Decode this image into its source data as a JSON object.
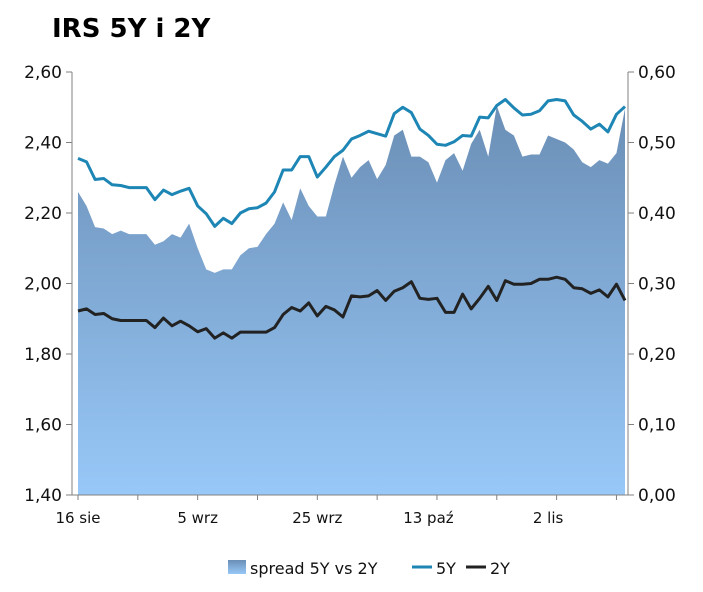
{
  "chart_data": {
    "type": "line",
    "title": "IRS 5Y i 2Y",
    "x_tick_labels": [
      "16 sie",
      "5 wrz",
      "25 wrz",
      "13 paź",
      "2 lis"
    ],
    "x_tick_index": [
      0,
      14,
      28,
      41,
      55
    ],
    "y_left": {
      "min": 1.4,
      "max": 2.6,
      "ticks": [
        1.4,
        1.6,
        1.8,
        2.0,
        2.2,
        2.4,
        2.6
      ],
      "tick_labels": [
        "1,40",
        "1,60",
        "1,80",
        "2,00",
        "2,20",
        "2,40",
        "2,60"
      ]
    },
    "y_right": {
      "min": 0.0,
      "max": 0.6,
      "ticks": [
        0.0,
        0.1,
        0.2,
        0.3,
        0.4,
        0.5,
        0.6
      ],
      "tick_labels": [
        "0,00",
        "0,10",
        "0,20",
        "0,30",
        "0,40",
        "0,50",
        "0,60"
      ]
    },
    "grid": false,
    "legend_position": "bottom",
    "colors": {
      "spread_fill_top": "#6b8fb6",
      "spread_fill_bottom": "#98c8f8",
      "line_5y": "#1d86b5",
      "line_2y": "#222222",
      "axis": "#808080"
    },
    "series": [
      {
        "name": "spread 5Y vs 2Y",
        "axis": "right",
        "kind": "area",
        "values": [
          0.43,
          0.41,
          0.38,
          0.378,
          0.37,
          0.375,
          0.37,
          0.37,
          0.37,
          0.355,
          0.36,
          0.37,
          0.365,
          0.385,
          0.35,
          0.32,
          0.315,
          0.32,
          0.32,
          0.34,
          0.35,
          0.352,
          0.37,
          0.385,
          0.415,
          0.39,
          0.435,
          0.41,
          0.395,
          0.395,
          0.44,
          0.48,
          0.45,
          0.465,
          0.475,
          0.448,
          0.468,
          0.51,
          0.518,
          0.48,
          0.48,
          0.472,
          0.443,
          0.475,
          0.485,
          0.46,
          0.498,
          0.518,
          0.48,
          0.552,
          0.518,
          0.51,
          0.48,
          0.483,
          0.483,
          0.51,
          0.505,
          0.5,
          0.49,
          0.472,
          0.465,
          0.475,
          0.47,
          0.485,
          0.548
        ]
      },
      {
        "name": "5Y",
        "axis": "left",
        "kind": "line",
        "values": [
          2.355,
          2.345,
          2.295,
          2.298,
          2.28,
          2.278,
          2.272,
          2.272,
          2.272,
          2.238,
          2.265,
          2.252,
          2.262,
          2.27,
          2.22,
          2.198,
          2.162,
          2.185,
          2.17,
          2.2,
          2.212,
          2.215,
          2.228,
          2.26,
          2.322,
          2.322,
          2.36,
          2.36,
          2.302,
          2.33,
          2.36,
          2.378,
          2.41,
          2.42,
          2.432,
          2.425,
          2.418,
          2.482,
          2.5,
          2.485,
          2.438,
          2.42,
          2.395,
          2.392,
          2.402,
          2.42,
          2.418,
          2.472,
          2.47,
          2.505,
          2.522,
          2.498,
          2.478,
          2.48,
          2.49,
          2.518,
          2.522,
          2.518,
          2.478,
          2.46,
          2.438,
          2.452,
          2.43,
          2.48,
          2.502
        ]
      },
      {
        "name": "2Y",
        "axis": "left",
        "kind": "line",
        "values": [
          1.922,
          1.928,
          1.912,
          1.915,
          1.9,
          1.895,
          1.895,
          1.895,
          1.895,
          1.875,
          1.902,
          1.88,
          1.893,
          1.88,
          1.863,
          1.872,
          1.845,
          1.86,
          1.845,
          1.862,
          1.862,
          1.862,
          1.862,
          1.875,
          1.912,
          1.932,
          1.922,
          1.945,
          1.908,
          1.935,
          1.925,
          1.905,
          1.965,
          1.962,
          1.965,
          1.98,
          1.952,
          1.978,
          1.988,
          2.005,
          1.958,
          1.955,
          1.958,
          1.918,
          1.918,
          1.97,
          1.928,
          1.958,
          1.992,
          1.952,
          2.008,
          1.998,
          1.998,
          2.0,
          2.012,
          2.012,
          2.018,
          2.012,
          1.988,
          1.985,
          1.972,
          1.982,
          1.962,
          1.998,
          1.952
        ]
      }
    ]
  }
}
